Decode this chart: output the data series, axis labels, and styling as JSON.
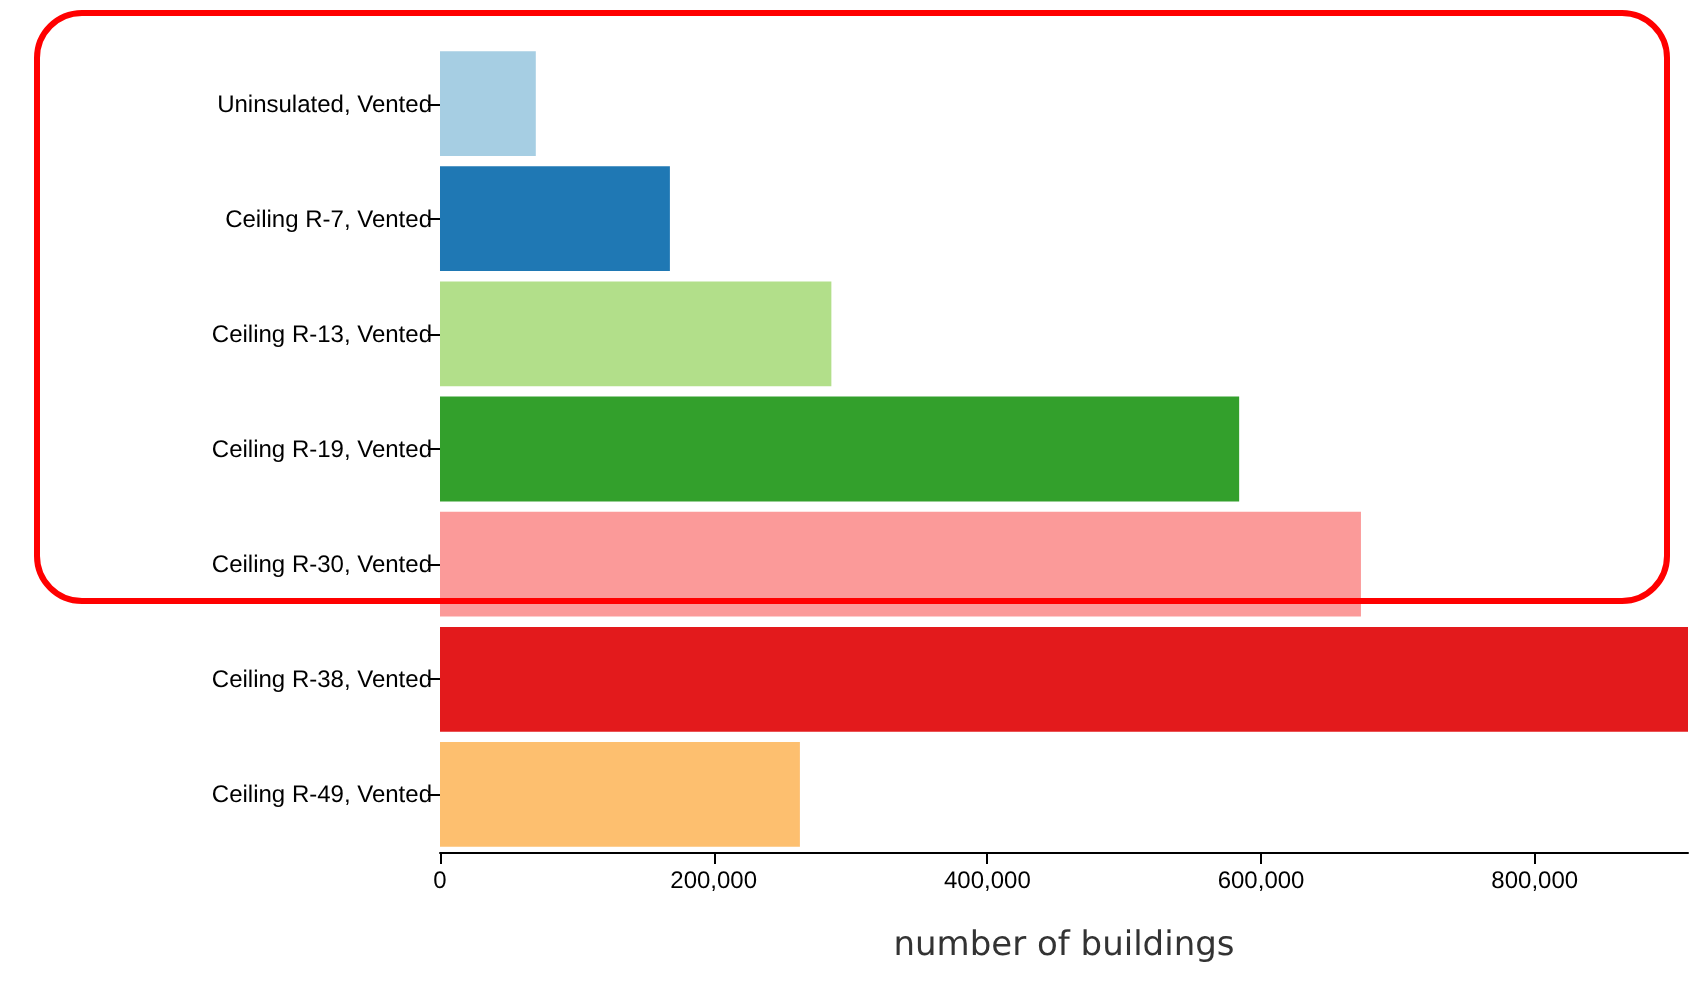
{
  "chart_data": {
    "type": "bar",
    "orientation": "horizontal",
    "xlabel": "number of buildings",
    "categories": [
      "Uninsulated, Vented",
      "Ceiling R-7, Vented",
      "Ceiling R-13, Vented",
      "Ceiling R-19, Vented",
      "Ceiling R-30, Vented",
      "Ceiling R-38, Vented",
      "Ceiling R-49, Vented"
    ],
    "values": [
      70000,
      168000,
      286000,
      584000,
      673000,
      912000,
      263000
    ],
    "colors": [
      "#a6cee3",
      "#1f78b4",
      "#b2df8a",
      "#33a02c",
      "#fb9a99",
      "#e31a1c",
      "#fdbf6f"
    ],
    "xlim": [
      0,
      912000
    ],
    "xticks": [
      0,
      {
        "value": 200000,
        "label": "200,000"
      },
      {
        "value": 400000,
        "label": "400,000"
      },
      {
        "value": 600000,
        "label": "600,000"
      },
      {
        "value": 800000,
        "label": "800,000"
      }
    ],
    "grid": false
  }
}
